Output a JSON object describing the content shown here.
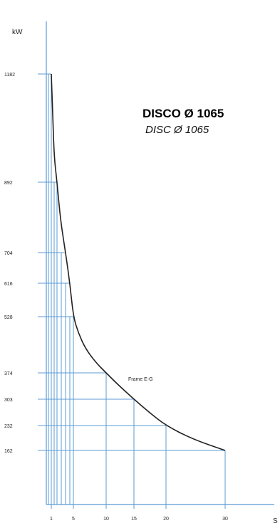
{
  "chart_data": {
    "type": "line",
    "title": "DISCO Ø 1065",
    "subtitle": "DISC Ø 1065",
    "ylabel": "kW",
    "xlabel": "S",
    "x": [
      1,
      5,
      10,
      15,
      20,
      30
    ],
    "y_ticks": [
      1182,
      892,
      704,
      616,
      528,
      374,
      303,
      232,
      162
    ],
    "x_ticks": [
      1,
      5,
      10,
      15,
      20,
      30
    ],
    "series": [
      {
        "points": [
          [
            1,
            1182
          ],
          [
            2,
            892
          ],
          [
            3,
            704
          ],
          [
            4,
            616
          ],
          [
            5,
            528
          ],
          [
            10,
            374
          ],
          [
            15,
            303
          ],
          [
            20,
            232
          ],
          [
            30,
            162
          ]
        ]
      }
    ],
    "annotation": "Frame E-G",
    "grid": true,
    "colors": {
      "axis": "#5b9bd5",
      "grid": "#5b9bd5",
      "curve": "#222222"
    }
  }
}
